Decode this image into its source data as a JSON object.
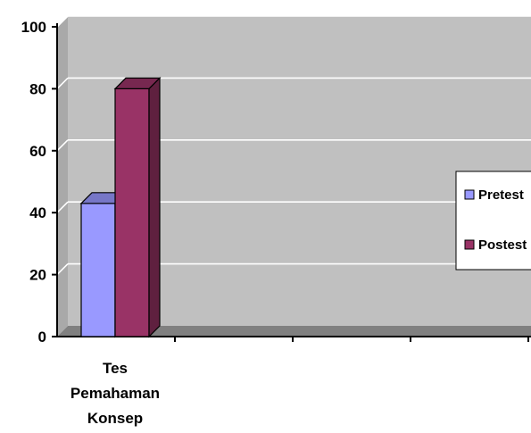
{
  "chart_data": {
    "type": "bar",
    "categories": [
      [
        "Tes",
        "Pemahaman",
        "Konsep"
      ]
    ],
    "series": [
      {
        "name": "Pretest",
        "values": [
          43
        ],
        "color": "#9999ff"
      },
      {
        "name": "Postest",
        "values": [
          80
        ],
        "color": "#993366"
      }
    ],
    "ylim": [
      0,
      100
    ],
    "yticks": [
      0,
      20,
      40,
      60,
      80,
      100
    ],
    "grid": true,
    "legend_position": "right",
    "style": "3d-clustered-column",
    "colors": {
      "wall": "#c0c0c0",
      "floor": "#808080",
      "grid": "#ffffff"
    }
  }
}
